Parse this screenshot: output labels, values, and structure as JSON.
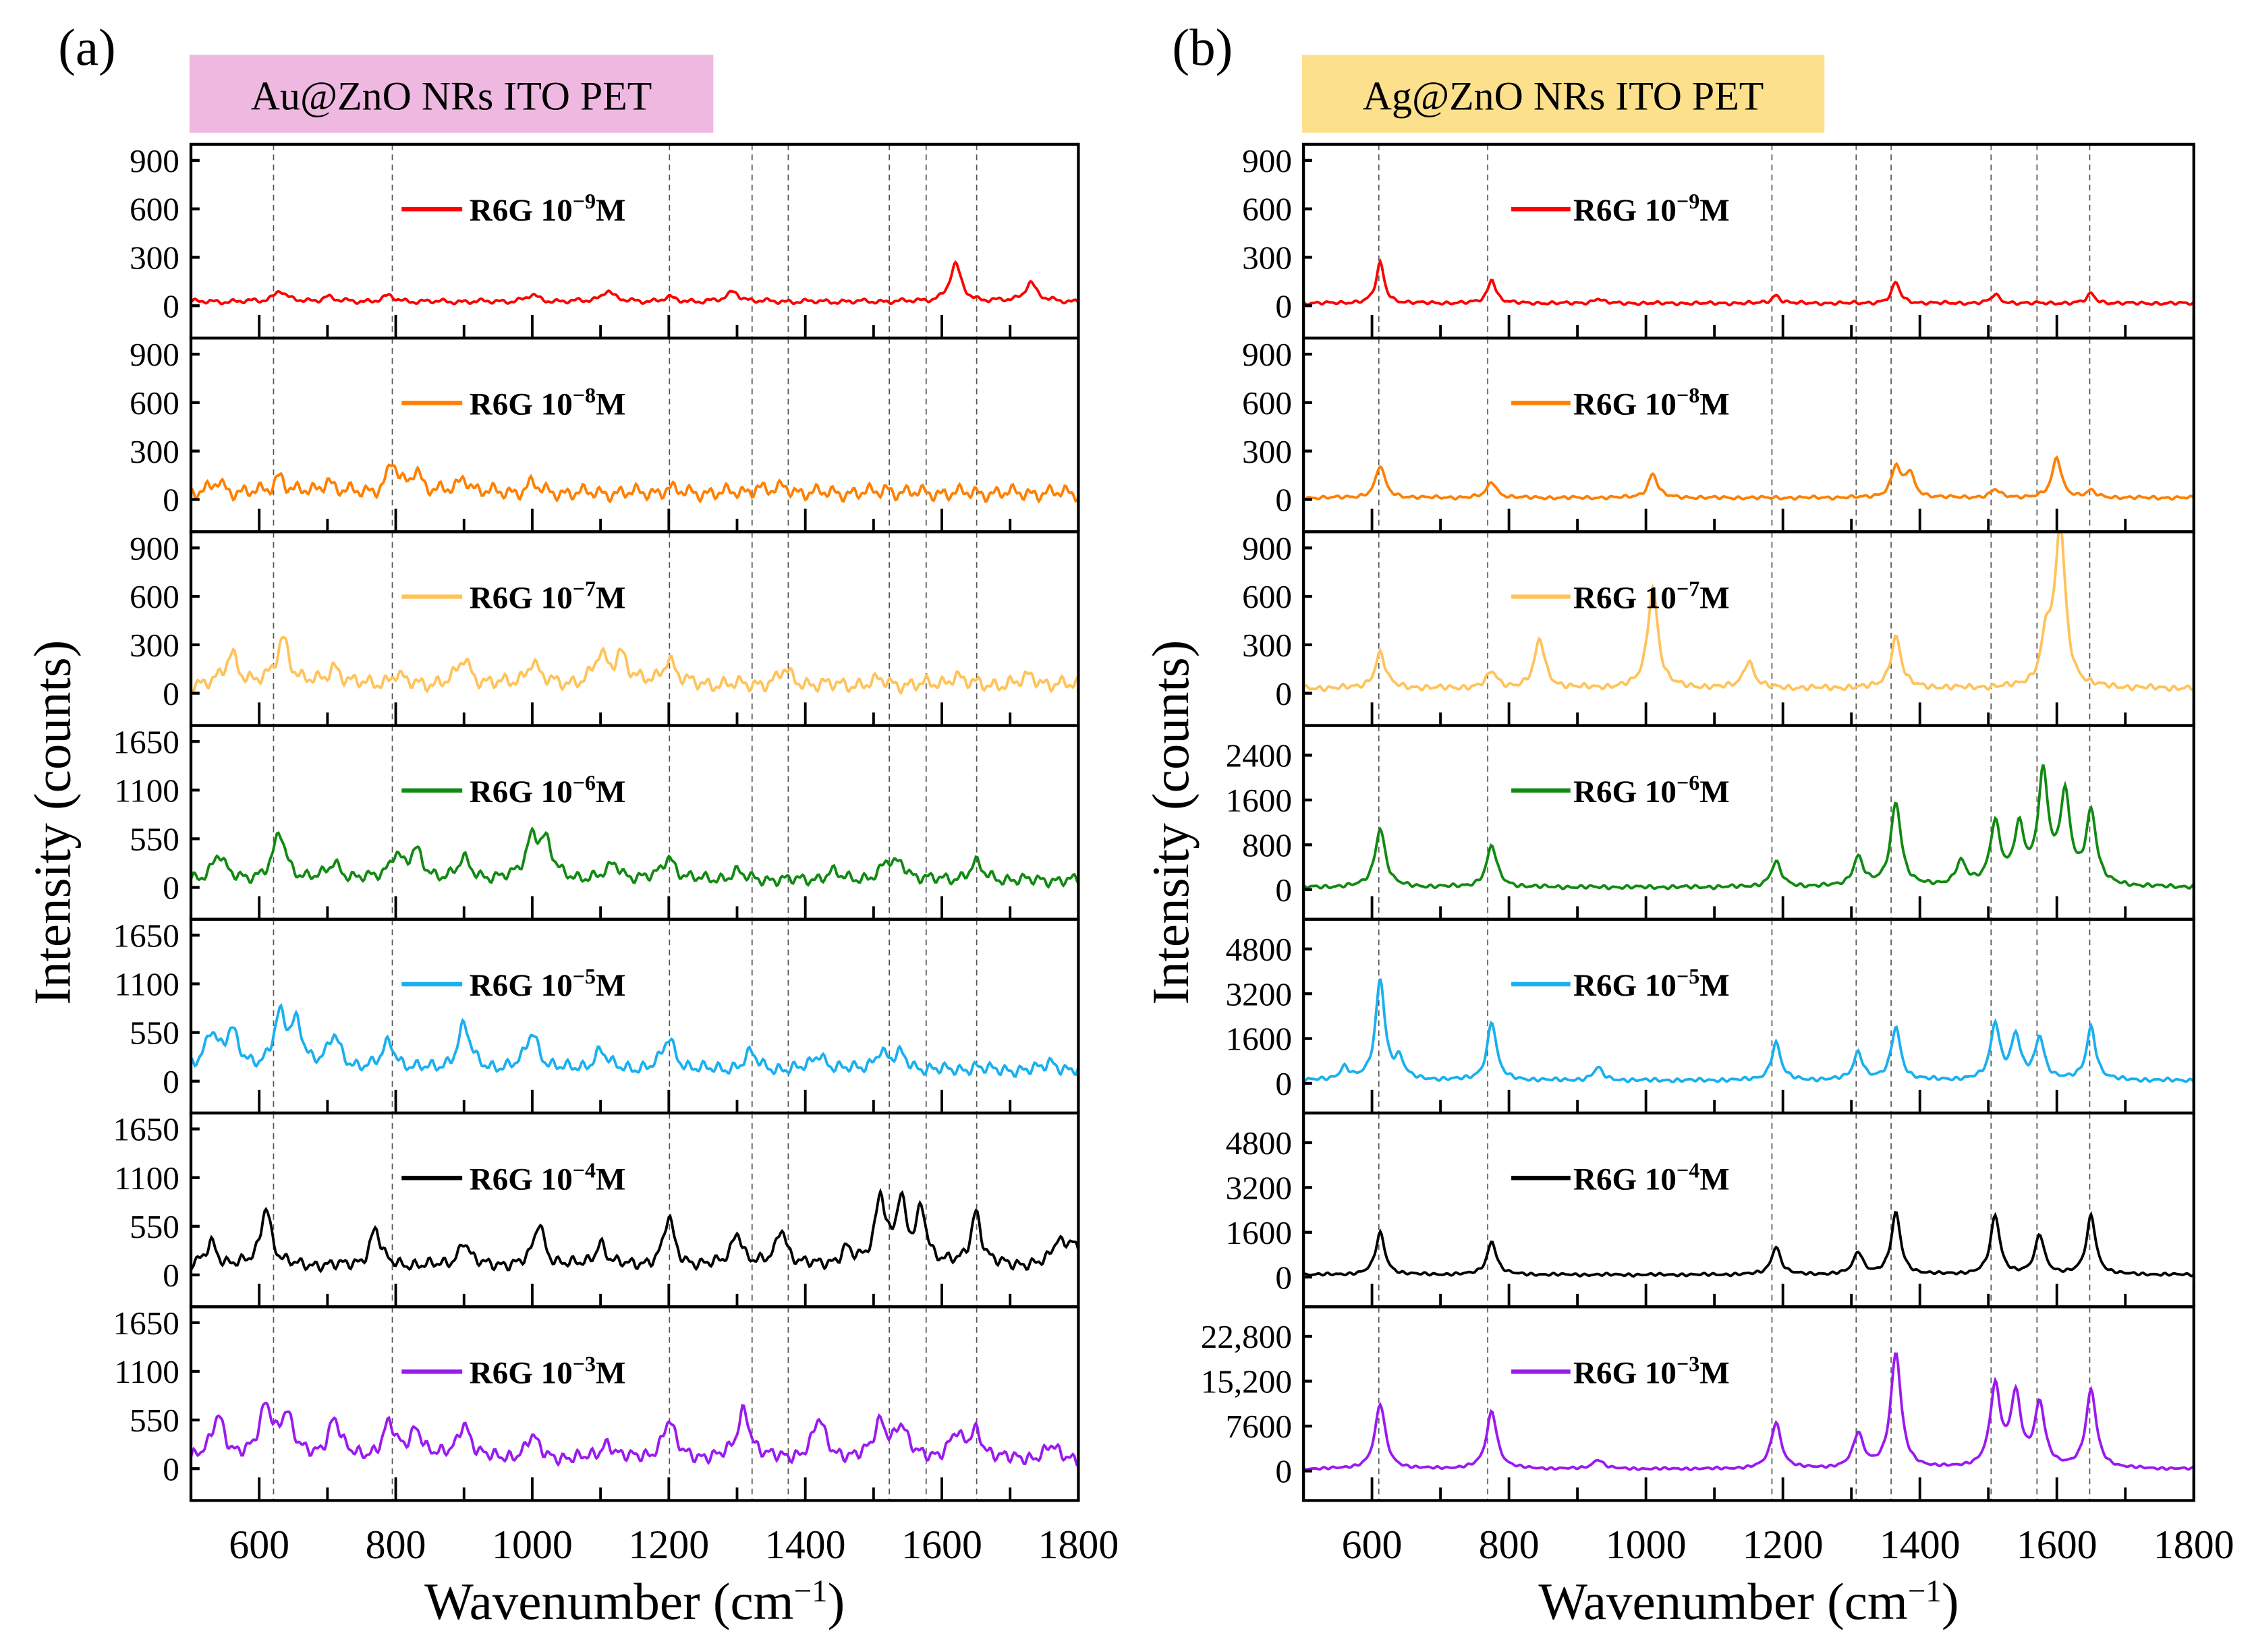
{
  "chart_data": [
    {
      "type": "line",
      "panel_label": "(a)",
      "title": "Au@ZnO NRs ITO PET",
      "title_color": "#EEB8E0",
      "xlabel": "Wavenumber (cm",
      "xlabel_sup": "−1",
      "xlabel_end": ")",
      "ylabel": "Intensity (counts)",
      "xlim": [
        500,
        1800
      ],
      "xticks": [
        600,
        800,
        1000,
        1200,
        1400,
        1600,
        1800
      ],
      "reference_lines": [
        621,
        795,
        1201,
        1322,
        1375,
        1523,
        1577,
        1651
      ],
      "series": [
        {
          "name": "R6G 10−9M",
          "base": "R6G 10",
          "exp": "−9",
          "unit": "M",
          "color": "#FF0000",
          "ylim": [
            -200,
            1000
          ],
          "yticks": [
            "0",
            "300",
            "600",
            "900"
          ],
          "ytick_values": [
            0,
            300,
            600,
            900
          ],
          "baseline": 25,
          "noise": 18,
          "width": 10,
          "peaks": [
            [
              630,
              70
            ],
            [
              700,
              30
            ],
            [
              790,
              35
            ],
            [
              1000,
              40
            ],
            [
              1110,
              70
            ],
            [
              1200,
              25
            ],
            [
              1295,
              65
            ],
            [
              1620,
              230
            ],
            [
              1730,
              120
            ]
          ]
        },
        {
          "name": "R6G 10−8M",
          "base": "R6G 10",
          "exp": "−8",
          "unit": "M",
          "color": "#FF8000",
          "ylim": [
            -200,
            1000
          ],
          "yticks": [
            "0",
            "300",
            "600",
            "900"
          ],
          "ytick_values": [
            0,
            300,
            600,
            900
          ],
          "baseline": 40,
          "noise": 55,
          "width": 9,
          "peaks": [
            [
              540,
              70
            ],
            [
              630,
              110
            ],
            [
              700,
              80
            ],
            [
              795,
              180
            ],
            [
              830,
              140
            ],
            [
              900,
              100
            ],
            [
              1000,
              60
            ],
            [
              1200,
              30
            ],
            [
              1330,
              40
            ],
            [
              1370,
              40
            ],
            [
              1520,
              25
            ]
          ]
        },
        {
          "name": "R6G 10−7M",
          "base": "R6G 10",
          "exp": "−7",
          "unit": "M",
          "color": "#FFC35A",
          "ylim": [
            -200,
            1000
          ],
          "yticks": [
            "0",
            "300",
            "600",
            "900"
          ],
          "ytick_values": [
            0,
            300,
            600,
            900
          ],
          "baseline": 50,
          "noise": 55,
          "width": 11,
          "peaks": [
            [
              560,
              190
            ],
            [
              635,
              290
            ],
            [
              710,
              110
            ],
            [
              800,
              60
            ],
            [
              900,
              160
            ],
            [
              1000,
              140
            ],
            [
              1100,
              170
            ],
            [
              1130,
              190
            ],
            [
              1200,
              160
            ],
            [
              1370,
              90
            ],
            [
              1510,
              30
            ],
            [
              1620,
              60
            ],
            [
              1730,
              60
            ]
          ]
        },
        {
          "name": "R6G 10−6M",
          "base": "R6G 10",
          "exp": "−6",
          "unit": "M",
          "color": "#118A11",
          "ylim": [
            -360,
            1830
          ],
          "yticks": [
            "0",
            "550",
            "1100",
            "1650"
          ],
          "ytick_values": [
            0,
            550,
            1100,
            1650
          ],
          "baseline": 80,
          "noise": 80,
          "width": 11,
          "peaks": [
            [
              540,
              280
            ],
            [
              630,
              520
            ],
            [
              710,
              180
            ],
            [
              800,
              280
            ],
            [
              830,
              300
            ],
            [
              900,
              220
            ],
            [
              1000,
              460
            ],
            [
              1020,
              380
            ],
            [
              1120,
              180
            ],
            [
              1200,
              260
            ],
            [
              1300,
              90
            ],
            [
              1440,
              90
            ],
            [
              1520,
              170
            ],
            [
              1540,
              170
            ],
            [
              1650,
              190
            ]
          ]
        },
        {
          "name": "R6G 10−5M",
          "base": "R6G 10",
          "exp": "−5",
          "unit": "M",
          "color": "#1AB0F0",
          "ylim": [
            -360,
            1830
          ],
          "yticks": [
            "0",
            "550",
            "1100",
            "1650"
          ],
          "ytick_values": [
            0,
            550,
            1100,
            1650
          ],
          "baseline": 120,
          "noise": 85,
          "width": 11,
          "peaks": [
            [
              530,
              420
            ],
            [
              560,
              400
            ],
            [
              630,
              560
            ],
            [
              655,
              480
            ],
            [
              710,
              360
            ],
            [
              790,
              310
            ],
            [
              900,
              500
            ],
            [
              1000,
              420
            ],
            [
              1100,
              220
            ],
            [
              1200,
              350
            ],
            [
              1320,
              190
            ],
            [
              1420,
              180
            ],
            [
              1510,
              200
            ],
            [
              1540,
              170
            ],
            [
              1650,
              40
            ],
            [
              1760,
              90
            ]
          ]
        },
        {
          "name": "R6G 10−4M",
          "base": "R6G 10",
          "exp": "−4",
          "unit": "M",
          "color": "#000000",
          "ylim": [
            -360,
            1830
          ],
          "yticks": [
            "0",
            "550",
            "1100",
            "1650"
          ],
          "ytick_values": [
            0,
            550,
            1100,
            1650
          ],
          "baseline": 100,
          "noise": 80,
          "width": 9,
          "peaks": [
            [
              530,
              270
            ],
            [
              610,
              680
            ],
            [
              770,
              420
            ],
            [
              900,
              280
            ],
            [
              1010,
              480
            ],
            [
              1100,
              260
            ],
            [
              1200,
              540
            ],
            [
              1300,
              380
            ],
            [
              1365,
              420
            ],
            [
              1460,
              180
            ],
            [
              1510,
              780
            ],
            [
              1540,
              680
            ],
            [
              1570,
              620
            ],
            [
              1650,
              600
            ],
            [
              1770,
              260
            ],
            [
              1790,
              280
            ]
          ]
        },
        {
          "name": "R6G 10−3M",
          "base": "R6G 10",
          "exp": "−3",
          "unit": "M",
          "color": "#9B1AF0",
          "ylim": [
            -360,
            1830
          ],
          "yticks": [
            "0",
            "550",
            "1100",
            "1650"
          ],
          "ytick_values": [
            0,
            550,
            1100,
            1650
          ],
          "baseline": 100,
          "noise": 90,
          "width": 11,
          "peaks": [
            [
              540,
              480
            ],
            [
              610,
              580
            ],
            [
              640,
              480
            ],
            [
              710,
              440
            ],
            [
              790,
              380
            ],
            [
              830,
              330
            ],
            [
              900,
              400
            ],
            [
              1000,
              250
            ],
            [
              1110,
              180
            ],
            [
              1200,
              430
            ],
            [
              1310,
              560
            ],
            [
              1420,
              440
            ],
            [
              1510,
              400
            ],
            [
              1540,
              360
            ],
            [
              1620,
              260
            ],
            [
              1650,
              310
            ],
            [
              1760,
              150
            ]
          ]
        }
      ]
    },
    {
      "type": "line",
      "panel_label": "(b)",
      "title": "Ag@ZnO NRs ITO PET",
      "title_color": "#FDE08C",
      "xlabel": "Wavenumber (cm",
      "xlabel_sup": "−1",
      "xlabel_end": ")",
      "ylabel": "Intensity (counts)",
      "xlim": [
        500,
        1800
      ],
      "xticks": [
        600,
        800,
        1000,
        1200,
        1400,
        1600,
        1800
      ],
      "reference_lines": [
        610,
        769,
        1184,
        1307,
        1358,
        1504,
        1571,
        1648
      ],
      "series": [
        {
          "name": "R6G 10−9M",
          "base": "R6G 10",
          "exp": "−9",
          "unit": "M",
          "color": "#FF0000",
          "ylim": [
            -200,
            1000
          ],
          "yticks": [
            "0",
            "300",
            "600",
            "900"
          ],
          "ytick_values": [
            0,
            300,
            600,
            900
          ],
          "baseline": 15,
          "noise": 12,
          "width": 7,
          "peaks": [
            [
              612,
              250
            ],
            [
              775,
              150
            ],
            [
              930,
              30
            ],
            [
              1190,
              50
            ],
            [
              1365,
              130
            ],
            [
              1510,
              55
            ],
            [
              1650,
              60
            ]
          ]
        },
        {
          "name": "R6G 10−8M",
          "base": "R6G 10",
          "exp": "−8",
          "unit": "M",
          "color": "#FF8000",
          "ylim": [
            -200,
            1000
          ],
          "yticks": [
            "0",
            "300",
            "600",
            "900"
          ],
          "ytick_values": [
            0,
            300,
            600,
            900
          ],
          "baseline": 10,
          "noise": 12,
          "width": 8,
          "peaks": [
            [
              612,
              200
            ],
            [
              775,
              100
            ],
            [
              1010,
              150
            ],
            [
              1365,
              190
            ],
            [
              1385,
              150
            ],
            [
              1510,
              50
            ],
            [
              1600,
              250
            ],
            [
              1650,
              40
            ]
          ]
        },
        {
          "name": "R6G 10−7M",
          "base": "R6G 10",
          "exp": "−7",
          "unit": "M",
          "color": "#FFC35A",
          "ylim": [
            -200,
            1000
          ],
          "yticks": [
            "0",
            "300",
            "600",
            "900"
          ],
          "ytick_values": [
            0,
            300,
            600,
            900
          ],
          "baseline": 30,
          "noise": 20,
          "width": 9,
          "peaks": [
            [
              612,
              220
            ],
            [
              775,
              100
            ],
            [
              845,
              300
            ],
            [
              1010,
              620
            ],
            [
              1150,
              170
            ],
            [
              1365,
              320
            ],
            [
              1585,
              300
            ],
            [
              1605,
              980
            ]
          ]
        },
        {
          "name": "R6G 10−6M",
          "base": "R6G 10",
          "exp": "−6",
          "unit": "M",
          "color": "#118A11",
          "ylim": [
            -530,
            2930
          ],
          "yticks": [
            "0",
            "800",
            "1600",
            "2400"
          ],
          "ytick_values": [
            0,
            800,
            1600,
            2400
          ],
          "baseline": 40,
          "noise": 40,
          "width": 9,
          "peaks": [
            [
              612,
              1050
            ],
            [
              775,
              740
            ],
            [
              1190,
              440
            ],
            [
              1310,
              520
            ],
            [
              1365,
              1500
            ],
            [
              1460,
              420
            ],
            [
              1510,
              1100
            ],
            [
              1545,
              980
            ],
            [
              1580,
              1950
            ],
            [
              1612,
              1550
            ],
            [
              1650,
              1300
            ]
          ]
        },
        {
          "name": "R6G 10−5M",
          "base": "R6G 10",
          "exp": "−5",
          "unit": "M",
          "color": "#1AB0F0",
          "ylim": [
            -1060,
            5860
          ],
          "yticks": [
            "0",
            "1600",
            "3200",
            "4800"
          ],
          "ytick_values": [
            0,
            1600,
            3200,
            4800
          ],
          "baseline": 100,
          "noise": 80,
          "width": 8,
          "peaks": [
            [
              560,
              450
            ],
            [
              612,
              3600
            ],
            [
              640,
              700
            ],
            [
              775,
              2100
            ],
            [
              930,
              450
            ],
            [
              1190,
              1350
            ],
            [
              1310,
              1000
            ],
            [
              1365,
              1900
            ],
            [
              1510,
              2000
            ],
            [
              1540,
              1550
            ],
            [
              1575,
              1500
            ],
            [
              1650,
              1900
            ]
          ]
        },
        {
          "name": "R6G 10−4M",
          "base": "R6G 10",
          "exp": "−4",
          "unit": "M",
          "color": "#000000",
          "ylim": [
            -1060,
            5860
          ],
          "yticks": [
            "0",
            "1600",
            "3200",
            "4800"
          ],
          "ytick_values": [
            0,
            1600,
            3200,
            4800
          ],
          "baseline": 80,
          "noise": 60,
          "width": 8,
          "peaks": [
            [
              612,
              1500
            ],
            [
              775,
              1200
            ],
            [
              1190,
              1000
            ],
            [
              1310,
              800
            ],
            [
              1365,
              2200
            ],
            [
              1510,
              2100
            ],
            [
              1575,
              1400
            ],
            [
              1650,
              2100
            ]
          ]
        },
        {
          "name": "R6G 10−3M",
          "base": "R6G 10",
          "exp": "−3",
          "unit": "M",
          "color": "#9B1AF0",
          "ylim": [
            -5000,
            27800
          ],
          "yticks": [
            "0",
            "7600",
            "15,200",
            "22,800"
          ],
          "ytick_values": [
            0,
            7600,
            15200,
            22800
          ],
          "baseline": 300,
          "noise": 250,
          "width": 9,
          "peaks": [
            [
              612,
              11000
            ],
            [
              775,
              9800
            ],
            [
              930,
              1600
            ],
            [
              1190,
              7800
            ],
            [
              1310,
              5700
            ],
            [
              1365,
              19500
            ],
            [
              1510,
              13500
            ],
            [
              1540,
              12000
            ],
            [
              1575,
              10500
            ],
            [
              1650,
              13200
            ]
          ]
        }
      ]
    }
  ]
}
